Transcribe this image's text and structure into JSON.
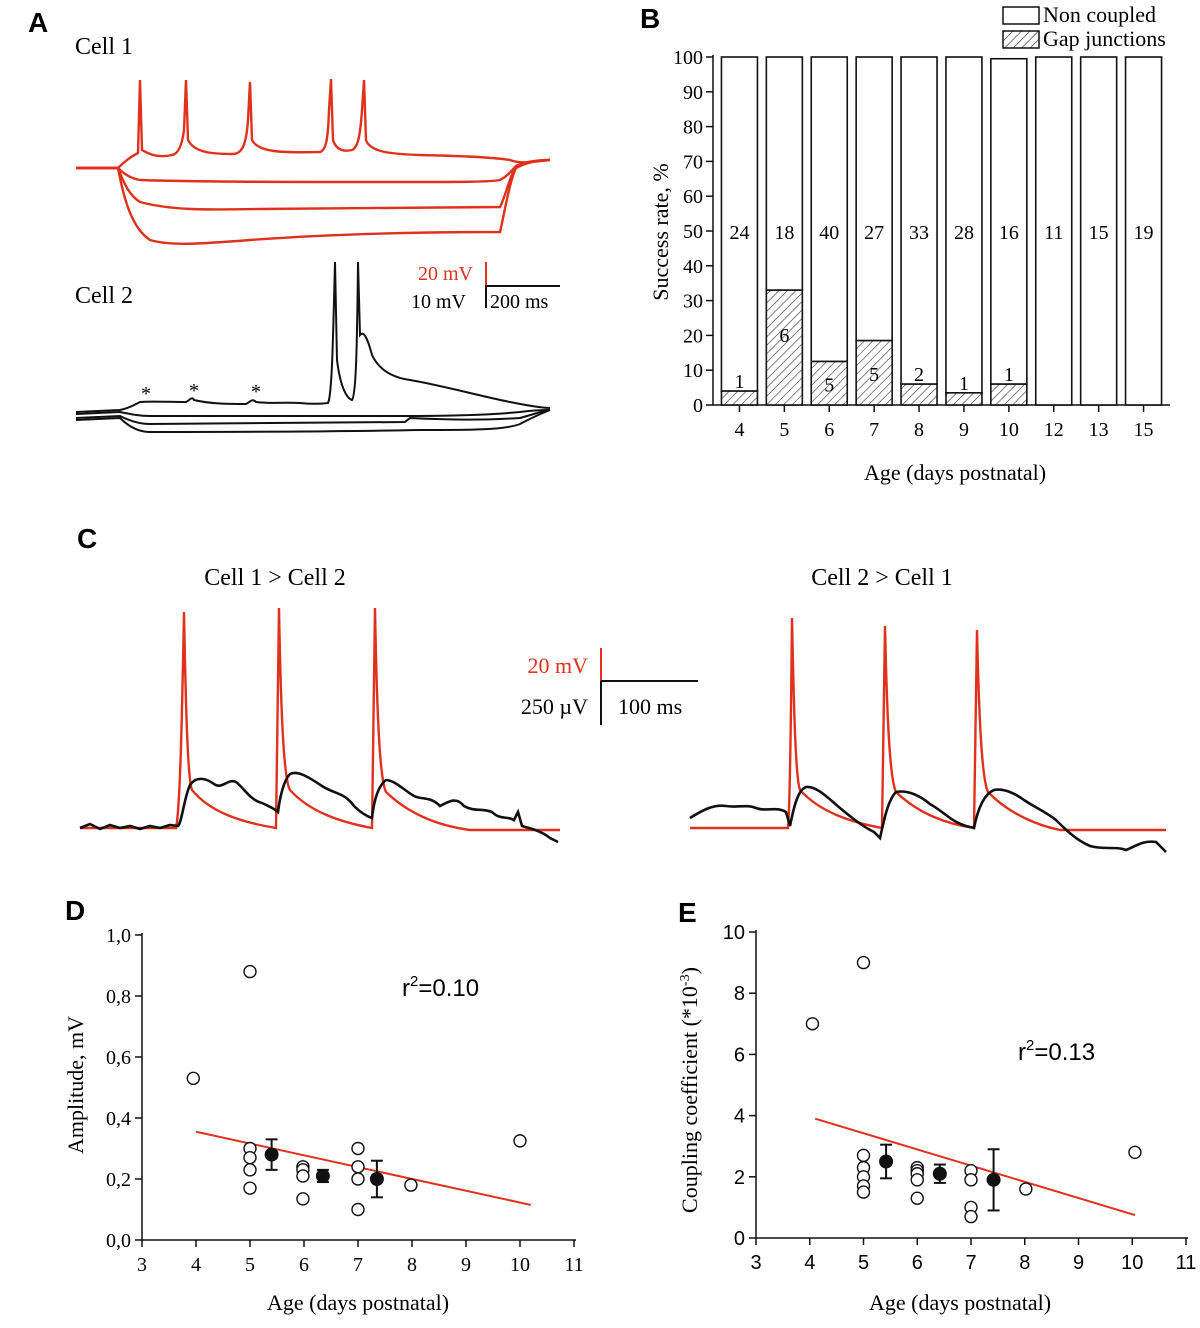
{
  "colors": {
    "red": "#e0311c",
    "black": "#111111",
    "hatch": "#333333"
  },
  "panels": {
    "A": {
      "label": "A",
      "cell1_label": "Cell 1",
      "cell2_label": "Cell 2",
      "scale_red": "20 mV",
      "scale_black": "10 mV",
      "scale_time": "200 ms",
      "star": "*"
    },
    "C": {
      "label": "C",
      "title_left": "Cell 1 > Cell 2",
      "title_right": "Cell 2 > Cell 1",
      "scale_red": "20 mV",
      "scale_black": "250 µV",
      "scale_time": "100 ms"
    }
  },
  "chart_data": [
    {
      "id": "B",
      "panel_label": "B",
      "type": "bar",
      "stacked": true,
      "categories": [
        "4",
        "5",
        "6",
        "7",
        "8",
        "9",
        "10",
        "12",
        "13",
        "15"
      ],
      "series": [
        {
          "name": "Gap junctions",
          "values": [
            4,
            33,
            12.5,
            18.5,
            6,
            3.5,
            6,
            0,
            0,
            0
          ],
          "counts": [
            "1",
            "6",
            "5",
            "5",
            "2",
            "1",
            "1",
            "",
            "",
            ""
          ]
        },
        {
          "name": "Non coupled",
          "values": [
            96,
            67,
            87.5,
            81.5,
            94,
            96.5,
            93.5,
            100,
            100,
            100
          ],
          "counts": [
            "24",
            "18",
            "40",
            "27",
            "33",
            "28",
            "16",
            "11",
            "15",
            "19"
          ]
        }
      ],
      "legend": [
        "Non coupled",
        "Gap junctions"
      ],
      "title": "",
      "xlabel": "Age (days postnatal)",
      "ylabel": "Success rate, %",
      "ylim": [
        0,
        100
      ],
      "yticks": [
        "0",
        "10",
        "20",
        "30",
        "40",
        "50",
        "60",
        "70",
        "80",
        "90",
        "100"
      ]
    },
    {
      "id": "D",
      "panel_label": "D",
      "type": "scatter",
      "xlabel": "Age (days postnatal)",
      "ylabel": "Amplitude, mV",
      "xlim": [
        3,
        11
      ],
      "ylim": [
        0,
        1.0
      ],
      "xticks": [
        "3",
        "4",
        "5",
        "6",
        "7",
        "8",
        "9",
        "10",
        "11"
      ],
      "yticks": [
        "0,0",
        "0,2",
        "0,4",
        "0,6",
        "0,8",
        "1,0"
      ],
      "points": [
        [
          3.95,
          0.53
        ],
        [
          5.0,
          0.88
        ],
        [
          5.0,
          0.3
        ],
        [
          5.0,
          0.27
        ],
        [
          5.0,
          0.23
        ],
        [
          5.0,
          0.17
        ],
        [
          5.98,
          0.24
        ],
        [
          5.98,
          0.23
        ],
        [
          5.98,
          0.21
        ],
        [
          5.98,
          0.135
        ],
        [
          7.0,
          0.3
        ],
        [
          7.0,
          0.24
        ],
        [
          7.0,
          0.2
        ],
        [
          7.0,
          0.1
        ],
        [
          7.98,
          0.18
        ],
        [
          10.0,
          0.325
        ]
      ],
      "means": [
        {
          "x": 5.4,
          "y": 0.28,
          "err": 0.05
        },
        {
          "x": 6.35,
          "y": 0.21,
          "err": 0.02
        },
        {
          "x": 7.35,
          "y": 0.2,
          "err": 0.06
        }
      ],
      "fit": {
        "x1": 4.0,
        "y1": 0.355,
        "x2": 10.2,
        "y2": 0.115
      },
      "r2_base": "r",
      "r2_sup": "2",
      "r2_value": "=0.10"
    },
    {
      "id": "E",
      "panel_label": "E",
      "type": "scatter",
      "xlabel": "Age (days postnatal)",
      "ylabel_base": "Coupling coefficient (*10",
      "ylabel_sup": "-3",
      "ylabel_end": ")",
      "xlim": [
        3,
        11
      ],
      "ylim": [
        0,
        10
      ],
      "xticks": [
        "3",
        "4",
        "5",
        "6",
        "7",
        "8",
        "9",
        "10",
        "11"
      ],
      "yticks": [
        "0",
        "2",
        "4",
        "6",
        "8",
        "10"
      ],
      "points": [
        [
          4.05,
          7.0
        ],
        [
          5.0,
          9.0
        ],
        [
          5.0,
          2.7
        ],
        [
          5.0,
          2.3
        ],
        [
          5.0,
          2.0
        ],
        [
          5.0,
          1.7
        ],
        [
          5.0,
          1.5
        ],
        [
          6.0,
          2.3
        ],
        [
          6.0,
          2.2
        ],
        [
          6.0,
          2.1
        ],
        [
          6.0,
          1.9
        ],
        [
          6.0,
          1.3
        ],
        [
          7.0,
          2.2
        ],
        [
          7.0,
          1.9
        ],
        [
          7.0,
          1.0
        ],
        [
          7.0,
          0.7
        ],
        [
          8.02,
          1.6
        ],
        [
          10.05,
          2.8
        ]
      ],
      "means": [
        {
          "x": 5.42,
          "y": 2.5,
          "err": 0.55
        },
        {
          "x": 6.42,
          "y": 2.1,
          "err": 0.3
        },
        {
          "x": 7.42,
          "y": 1.9,
          "err": 1.0
        }
      ],
      "fit": {
        "x1": 4.1,
        "y1": 3.9,
        "x2": 10.05,
        "y2": 0.75
      },
      "r2_base": "r",
      "r2_sup": "2",
      "r2_value": "=0.13"
    }
  ]
}
